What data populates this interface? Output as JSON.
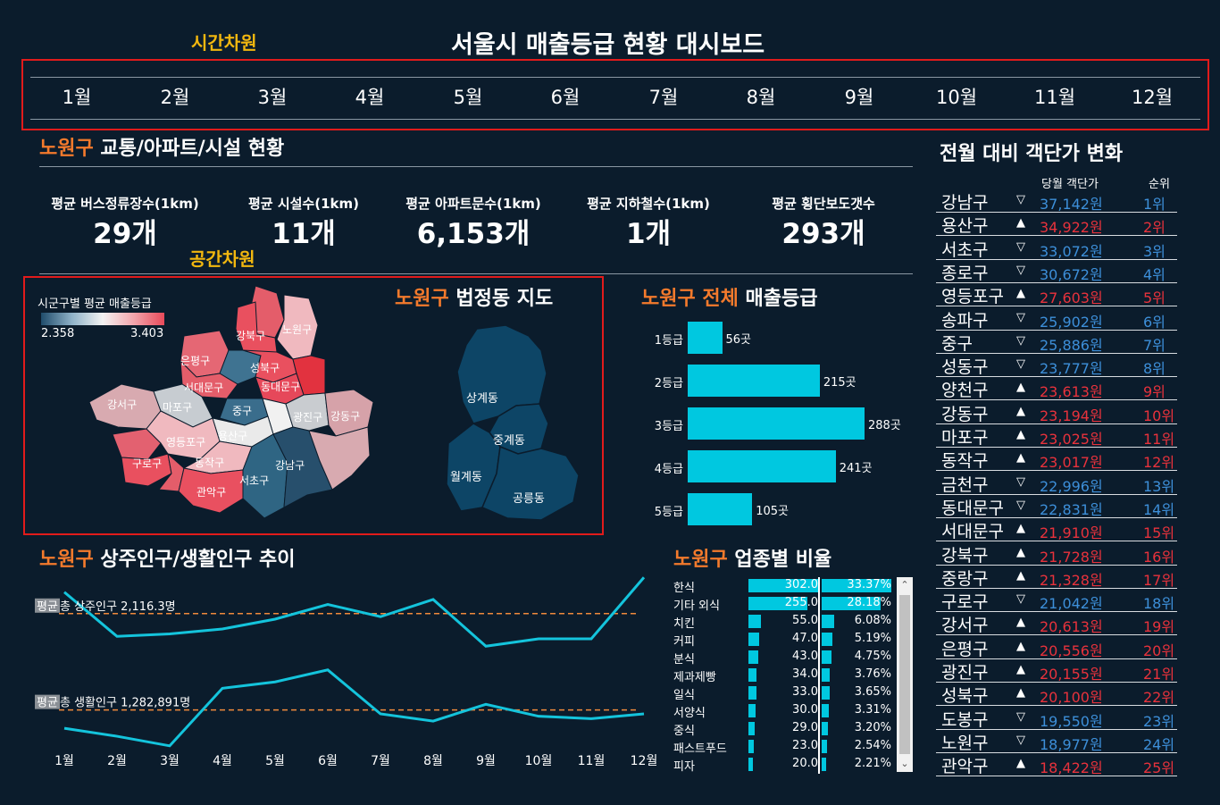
{
  "header": {
    "title": "서울시 매출등급 현황 대시보드",
    "time_dim_label": "시간차원",
    "space_dim_label": "공간차원"
  },
  "months": [
    "1월",
    "2월",
    "3월",
    "4월",
    "5월",
    "6월",
    "7월",
    "8월",
    "9월",
    "10월",
    "11월",
    "12월"
  ],
  "facility": {
    "district": "노원구",
    "title": " 교통/아파트/시설 현황"
  },
  "kpis": [
    {
      "label": "평균 버스정류장수(1km)",
      "value": "29개"
    },
    {
      "label": "평균 시설수(1km)",
      "value": "11개"
    },
    {
      "label": "평균 아파트문수(1km)",
      "value": "6,153개"
    },
    {
      "label": "평균 지하철수(1km)",
      "value": "1개"
    },
    {
      "label": "평균 횡단보도갯수",
      "value": "293개"
    }
  ],
  "seoul_map": {
    "legend_title": "시군구별 평균 매출등급",
    "legend_min": "2.358",
    "legend_max": "3.403",
    "districts": [
      "강북구",
      "노원구",
      "은평구",
      "성북구",
      "서대문구",
      "동대문구",
      "강서구",
      "마포구",
      "중구",
      "광진구",
      "강동구",
      "용산구",
      "영등포구",
      "구로구",
      "동작구",
      "강남구",
      "서초구",
      "관악구"
    ]
  },
  "nowon_map": {
    "district": "노원구",
    "title": " 법정동 지도",
    "dongs": [
      "상계동",
      "중계동",
      "월계동",
      "공릉동"
    ]
  },
  "grade_chart": {
    "district": "노원구",
    "title_mid": " 전체",
    "title_end": " 매출등급"
  },
  "chart_data": [
    {
      "type": "bar",
      "title": "노원구 전체 매출등급",
      "categories": [
        "1등급",
        "2등급",
        "3등급",
        "4등급",
        "5등급"
      ],
      "values": [
        56,
        215,
        288,
        241,
        105
      ],
      "value_labels": [
        "56곳",
        "215곳",
        "288곳",
        "241곳",
        "105곳"
      ]
    },
    {
      "type": "line",
      "title": "노원구 상주인구/생활인구 추이",
      "categories": [
        "1월",
        "2월",
        "3월",
        "4월",
        "5월",
        "6월",
        "7월",
        "8월",
        "9월",
        "10월",
        "11월",
        "12월"
      ],
      "series": [
        {
          "name": "상주인구",
          "values": [
            2160,
            2070,
            2075,
            2085,
            2105,
            2135,
            2110,
            2145,
            2050,
            2065,
            2065,
            2190
          ],
          "avg": 2116.3
        },
        {
          "name": "생활인구",
          "values": [
            1260,
            1250,
            1238,
            1310,
            1318,
            1333,
            1278,
            1269,
            1290,
            1275,
            1272,
            1278
          ],
          "avg": 1282.891
        }
      ],
      "avg_labels": [
        {
          "prefix": "평균",
          "text": " 총 상주인구 2,116.3명"
        },
        {
          "prefix": "평균",
          "text": " 총 생활인구 1,282,891명"
        }
      ]
    },
    {
      "type": "bar",
      "title": "노원구 업종별 비율",
      "categories": [
        "한식",
        "기타 외식",
        "치킨",
        "커피",
        "분식",
        "제과제빵",
        "일식",
        "서양식",
        "중식",
        "패스트푸드",
        "피자"
      ],
      "values": [
        302.0,
        255.0,
        55.0,
        47.0,
        43.0,
        34.0,
        33.0,
        30.0,
        29.0,
        23.0,
        20.0
      ],
      "percent": [
        "33.37%",
        "28.18%",
        "6.08%",
        "5.19%",
        "4.75%",
        "3.76%",
        "3.65%",
        "3.31%",
        "3.20%",
        "2.54%",
        "2.21%"
      ],
      "percent_values": [
        33.37,
        28.18,
        6.08,
        5.19,
        4.75,
        3.76,
        3.65,
        3.31,
        3.2,
        2.54,
        2.21
      ]
    }
  ],
  "population": {
    "district": "노원구",
    "title": " 상주인구/생활인구 추이"
  },
  "industry": {
    "district": "노원구",
    "title": " 업종별 비율",
    "value_labels": [
      "302.0",
      "255.0",
      "55.0",
      "47.0",
      "43.0",
      "34.0",
      "33.0",
      "30.0",
      "29.0",
      "23.0",
      "20.0"
    ]
  },
  "ranking": {
    "title": "전월 대비 객단가 변화",
    "col_price": "당월 객단가",
    "col_rank": "순위",
    "rows": [
      {
        "name": "강남구",
        "dir": "down",
        "arrow": "▽",
        "price": "37,142원",
        "rank": "1위"
      },
      {
        "name": "용산구",
        "dir": "up",
        "arrow": "▲",
        "price": "34,922원",
        "rank": "2위"
      },
      {
        "name": "서초구",
        "dir": "down",
        "arrow": "▽",
        "price": "33,072원",
        "rank": "3위"
      },
      {
        "name": "종로구",
        "dir": "down",
        "arrow": "▽",
        "price": "30,672원",
        "rank": "4위"
      },
      {
        "name": "영등포구",
        "dir": "up",
        "arrow": "▲",
        "price": "27,603원",
        "rank": "5위"
      },
      {
        "name": "송파구",
        "dir": "down",
        "arrow": "▽",
        "price": "25,902원",
        "rank": "6위"
      },
      {
        "name": "중구",
        "dir": "down",
        "arrow": "▽",
        "price": "25,886원",
        "rank": "7위"
      },
      {
        "name": "성동구",
        "dir": "down",
        "arrow": "▽",
        "price": "23,777원",
        "rank": "8위"
      },
      {
        "name": "양천구",
        "dir": "up",
        "arrow": "▲",
        "price": "23,613원",
        "rank": "9위"
      },
      {
        "name": "강동구",
        "dir": "up",
        "arrow": "▲",
        "price": "23,194원",
        "rank": "10위"
      },
      {
        "name": "마포구",
        "dir": "up",
        "arrow": "▲",
        "price": "23,025원",
        "rank": "11위"
      },
      {
        "name": "동작구",
        "dir": "up",
        "arrow": "▲",
        "price": "23,017원",
        "rank": "12위"
      },
      {
        "name": "금천구",
        "dir": "down",
        "arrow": "▽",
        "price": "22,996원",
        "rank": "13위"
      },
      {
        "name": "동대문구",
        "dir": "down",
        "arrow": "▽",
        "price": "22,831원",
        "rank": "14위"
      },
      {
        "name": "서대문구",
        "dir": "up",
        "arrow": "▲",
        "price": "21,910원",
        "rank": "15위"
      },
      {
        "name": "강북구",
        "dir": "up",
        "arrow": "▲",
        "price": "21,728원",
        "rank": "16위"
      },
      {
        "name": "중랑구",
        "dir": "up",
        "arrow": "▲",
        "price": "21,328원",
        "rank": "17위"
      },
      {
        "name": "구로구",
        "dir": "down",
        "arrow": "▽",
        "price": "21,042원",
        "rank": "18위"
      },
      {
        "name": "강서구",
        "dir": "up",
        "arrow": "▲",
        "price": "20,613원",
        "rank": "19위"
      },
      {
        "name": "은평구",
        "dir": "up",
        "arrow": "▲",
        "price": "20,556원",
        "rank": "20위"
      },
      {
        "name": "광진구",
        "dir": "up",
        "arrow": "▲",
        "price": "20,155원",
        "rank": "21위"
      },
      {
        "name": "성북구",
        "dir": "up",
        "arrow": "▲",
        "price": "20,100원",
        "rank": "22위"
      },
      {
        "name": "도봉구",
        "dir": "down",
        "arrow": "▽",
        "price": "19,550원",
        "rank": "23위"
      },
      {
        "name": "노원구",
        "dir": "down",
        "arrow": "▽",
        "price": "18,977원",
        "rank": "24위"
      },
      {
        "name": "관악구",
        "dir": "up",
        "arrow": "▲",
        "price": "18,422원",
        "rank": "25위"
      }
    ]
  },
  "colors": {
    "accent_orange": "#f47a2c",
    "accent_yellow": "#f2b70f",
    "bar_cyan": "#00c8e0",
    "up_red": "#e8323c",
    "down_blue": "#3d8fd9",
    "background": "#0b1c2c"
  }
}
